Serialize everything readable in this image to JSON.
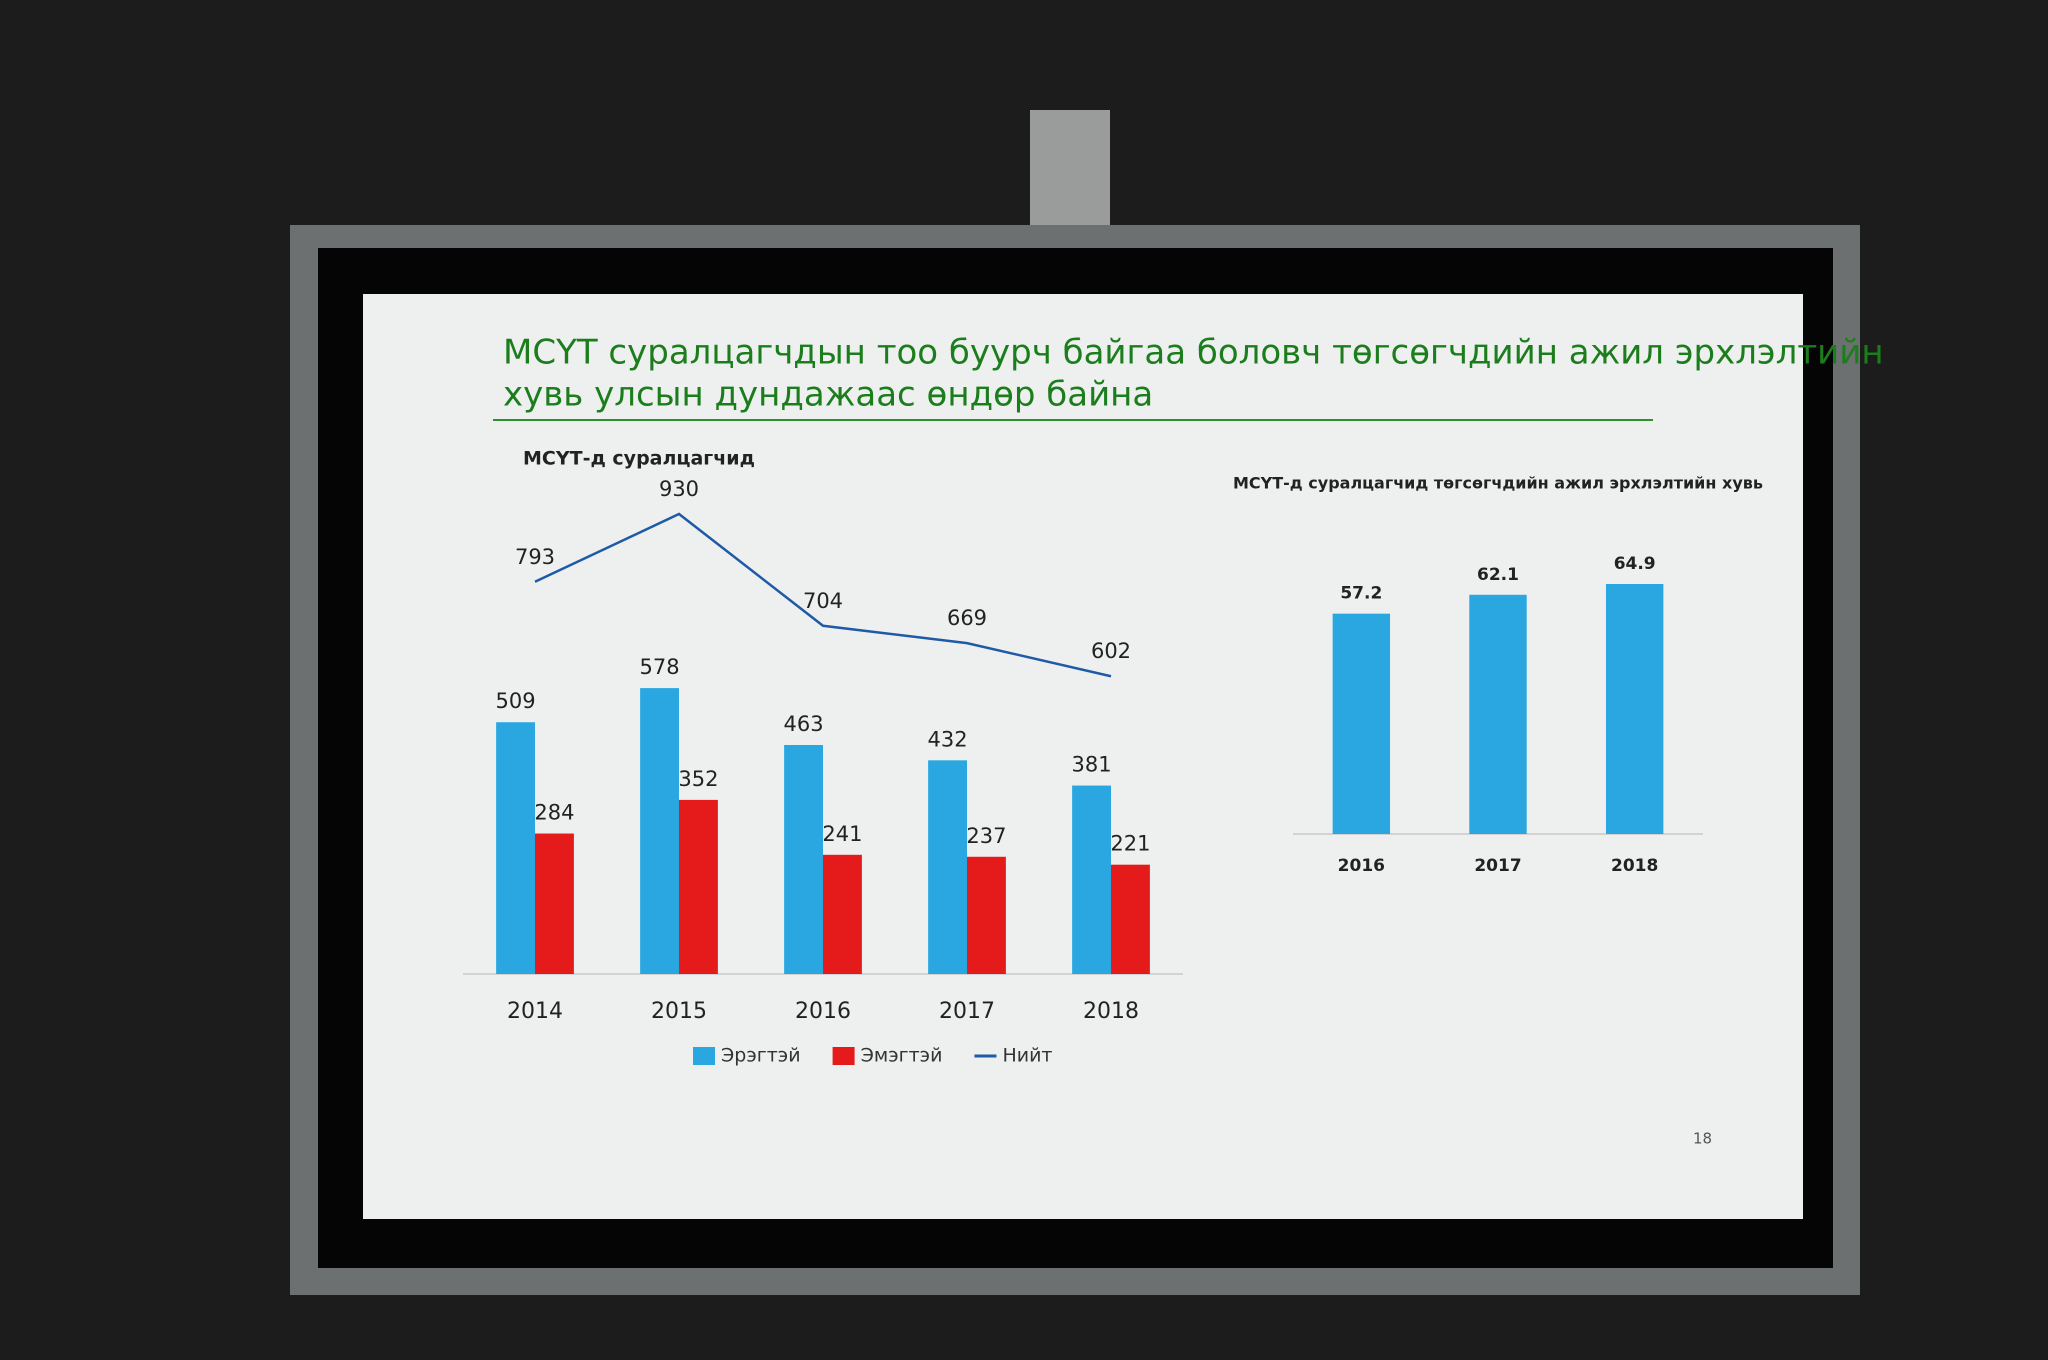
{
  "slide_title_line1": "МСҮТ суралцагчдын тоо буурч байгаа боловч төгсөгчдийн ажил эрхлэлтийн",
  "slide_title_line2": "хувь улсын дундажаас өндөр байна",
  "page_number": "18",
  "chart_data": [
    {
      "type": "bar",
      "title": "МСҮТ-д суралцагчид",
      "categories": [
        "2014",
        "2015",
        "2016",
        "2017",
        "2018"
      ],
      "series": [
        {
          "name": "Эрэгтэй",
          "color": "#2aa7e0",
          "values": [
            509,
            578,
            463,
            432,
            381
          ]
        },
        {
          "name": "Эмэгтэй",
          "color": "#e51b1b",
          "values": [
            284,
            352,
            241,
            237,
            221
          ]
        },
        {
          "name": "Нийт",
          "color": "#1f5aa6",
          "type": "line",
          "values": [
            793,
            930,
            704,
            669,
            602
          ]
        }
      ]
    },
    {
      "type": "bar",
      "title": "МСҮТ-д суралцагчид төгсөгчдийн ажил эрхлэлтийн хувь",
      "categories": [
        "2016",
        "2017",
        "2018"
      ],
      "values": [
        57.2,
        62.1,
        64.9
      ],
      "color": "#2aa7e0"
    }
  ]
}
